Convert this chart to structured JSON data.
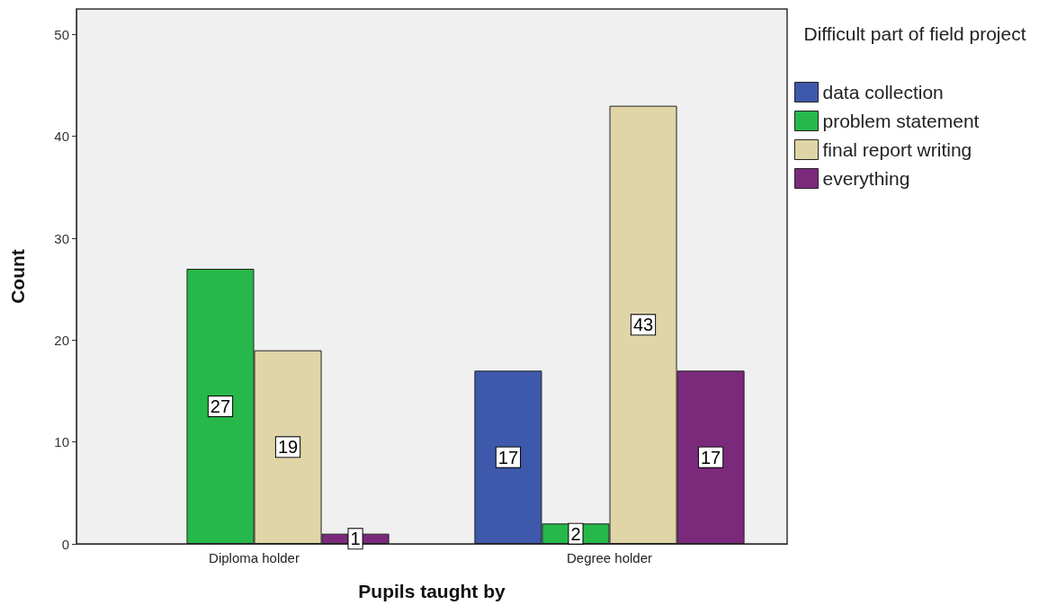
{
  "chart_data": {
    "type": "bar",
    "xlabel": "Pupils taught by",
    "ylabel": "Count",
    "legend_title": "Difficult part of field project",
    "categories": [
      "Diploma holder",
      "Degree holder"
    ],
    "series": [
      {
        "name": "data collection",
        "color": "#3e58ac",
        "values": [
          null,
          17
        ]
      },
      {
        "name": "problem statement",
        "color": "#26b84a",
        "values": [
          27,
          2
        ]
      },
      {
        "name": "final report writing",
        "color": "#e0d5a6",
        "values": [
          19,
          43
        ]
      },
      {
        "name": "everything",
        "color": "#7b2a7b",
        "values": [
          1,
          17
        ]
      }
    ],
    "ylim": [
      0,
      52.5
    ],
    "yticks": [
      0,
      10,
      20,
      30,
      40,
      50
    ],
    "grid": false,
    "legend": "top right",
    "data_labels": true
  }
}
